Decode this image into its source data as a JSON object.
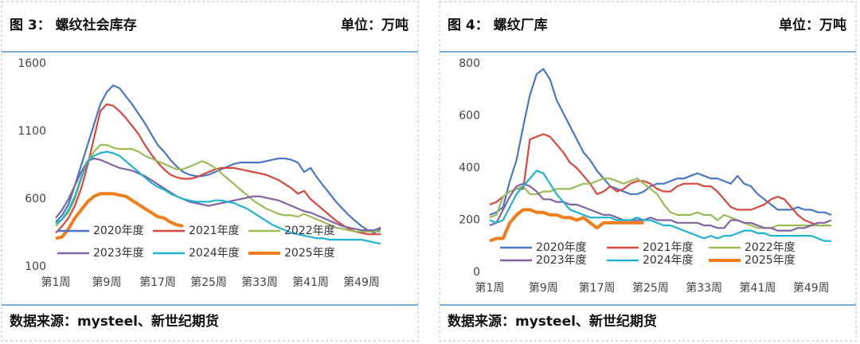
{
  "chart_data": [
    {
      "type": "line",
      "title": "图 3：   螺纹社会库存",
      "unit": "单位：万吨",
      "source": "数据来源：mysteel、新世纪期货",
      "categories": [
        "第1周",
        null,
        null,
        null,
        null,
        null,
        null,
        null,
        "第9周",
        null,
        null,
        null,
        null,
        null,
        null,
        null,
        "第17周",
        null,
        null,
        null,
        null,
        null,
        null,
        null,
        "第25周",
        null,
        null,
        null,
        null,
        null,
        null,
        null,
        "第33周",
        null,
        null,
        null,
        null,
        null,
        null,
        null,
        "第41周",
        null,
        null,
        null,
        null,
        null,
        null,
        null,
        "第49周",
        null,
        null,
        null
      ],
      "ylim": [
        100,
        1600
      ],
      "yticks": [
        100,
        600,
        1100,
        1600
      ],
      "grid": false,
      "series": [
        {
          "name": "2020年度",
          "color": "#4a76c4",
          "values": [
            430,
            480,
            560,
            700,
            850,
            1000,
            1150,
            1300,
            1390,
            1440,
            1420,
            1360,
            1300,
            1230,
            1160,
            1080,
            1000,
            950,
            890,
            840,
            800,
            780,
            770,
            770,
            780,
            800,
            820,
            840,
            860,
            870,
            870,
            870,
            870,
            880,
            890,
            900,
            900,
            890,
            870,
            800,
            830,
            760,
            700,
            640,
            580,
            530,
            480,
            440,
            400,
            370,
            350,
            380
          ]
        },
        {
          "name": "2021年度",
          "color": "#d9473f",
          "values": [
            350,
            400,
            460,
            550,
            680,
            850,
            1050,
            1250,
            1300,
            1290,
            1250,
            1200,
            1140,
            1080,
            1000,
            930,
            870,
            820,
            780,
            760,
            750,
            750,
            760,
            780,
            800,
            820,
            830,
            830,
            830,
            820,
            810,
            800,
            790,
            780,
            760,
            740,
            710,
            680,
            640,
            660,
            600,
            560,
            520,
            480,
            440,
            410,
            380,
            360,
            350,
            340,
            340,
            340
          ]
        },
        {
          "name": "2022年度",
          "color": "#9bbb59",
          "values": [
            400,
            450,
            500,
            600,
            750,
            880,
            950,
            1000,
            1000,
            980,
            970,
            970,
            970,
            950,
            920,
            900,
            880,
            860,
            840,
            820,
            820,
            840,
            860,
            880,
            860,
            830,
            790,
            750,
            710,
            670,
            630,
            590,
            560,
            530,
            510,
            490,
            480,
            480,
            470,
            490,
            470,
            450,
            430,
            410,
            390,
            380,
            370,
            360,
            360,
            360,
            360,
            360
          ]
        },
        {
          "name": "2023年度",
          "color": "#8064a2",
          "values": [
            460,
            520,
            600,
            700,
            800,
            880,
            900,
            890,
            870,
            850,
            830,
            820,
            810,
            790,
            770,
            740,
            710,
            680,
            650,
            620,
            600,
            580,
            570,
            560,
            550,
            560,
            570,
            580,
            590,
            600,
            610,
            620,
            620,
            610,
            600,
            590,
            570,
            550,
            530,
            510,
            500,
            480,
            460,
            440,
            420,
            400,
            390,
            380,
            370,
            370,
            370,
            390
          ]
        },
        {
          "name": "2024年度",
          "color": "#1fb3d2",
          "values": [
            420,
            450,
            520,
            620,
            760,
            880,
            920,
            940,
            950,
            940,
            920,
            880,
            840,
            800,
            760,
            720,
            690,
            670,
            640,
            620,
            600,
            590,
            580,
            580,
            580,
            590,
            590,
            580,
            570,
            550,
            530,
            500,
            470,
            440,
            410,
            390,
            370,
            350,
            340,
            330,
            320,
            310,
            310,
            300,
            300,
            300,
            300,
            300,
            300,
            290,
            280,
            270
          ]
        },
        {
          "name": "2025年度",
          "color": "#f07c1a",
          "width": 4,
          "values": [
            310,
            320,
            380,
            460,
            520,
            580,
            620,
            640,
            640,
            640,
            630,
            620,
            590,
            560,
            530,
            500,
            470,
            460,
            430,
            410,
            400,
            null,
            null,
            null,
            null,
            null,
            null,
            null,
            null,
            null,
            null,
            null,
            null,
            null,
            null,
            null,
            null,
            null,
            null,
            null,
            null,
            null,
            null,
            null,
            null,
            null,
            null,
            null,
            null,
            null,
            null,
            null
          ]
        }
      ]
    },
    {
      "type": "line",
      "title": "图 4：   螺纹厂库",
      "unit": "单位：万吨",
      "source": "数据来源：mysteel、新世纪期货",
      "categories": [
        "第1周",
        null,
        null,
        null,
        null,
        null,
        null,
        null,
        "第9周",
        null,
        null,
        null,
        null,
        null,
        null,
        null,
        "第17周",
        null,
        null,
        null,
        null,
        null,
        null,
        null,
        "第25周",
        null,
        null,
        null,
        null,
        null,
        null,
        null,
        "第33周",
        null,
        null,
        null,
        null,
        null,
        null,
        null,
        "第41周",
        null,
        null,
        null,
        null,
        null,
        null,
        null,
        "第49周",
        null,
        null,
        null
      ],
      "ylim": [
        0,
        800
      ],
      "yticks": [
        0,
        200,
        400,
        600,
        800
      ],
      "grid": false,
      "series": [
        {
          "name": "2020年度",
          "color": "#4a76c4",
          "values": [
            220,
            230,
            250,
            350,
            430,
            560,
            680,
            760,
            780,
            740,
            660,
            610,
            560,
            510,
            460,
            430,
            390,
            360,
            330,
            320,
            310,
            300,
            300,
            310,
            330,
            340,
            340,
            350,
            360,
            360,
            370,
            380,
            370,
            360,
            360,
            350,
            340,
            370,
            340,
            330,
            300,
            280,
            260,
            240,
            240,
            240,
            250,
            240,
            240,
            230,
            230,
            220
          ]
        },
        {
          "name": "2021年度",
          "color": "#d9473f",
          "values": [
            260,
            270,
            290,
            310,
            320,
            320,
            510,
            520,
            530,
            520,
            490,
            460,
            420,
            400,
            370,
            340,
            300,
            310,
            330,
            310,
            320,
            340,
            350,
            350,
            340,
            320,
            310,
            310,
            330,
            340,
            340,
            340,
            330,
            330,
            310,
            280,
            250,
            240,
            240,
            240,
            250,
            260,
            280,
            290,
            280,
            250,
            220,
            200,
            190,
            180,
            180,
            180
          ]
        },
        {
          "name": "2022年度",
          "color": "#9bbb59",
          "values": [
            210,
            220,
            290,
            310,
            320,
            330,
            300,
            300,
            310,
            310,
            320,
            320,
            320,
            330,
            340,
            340,
            350,
            360,
            360,
            350,
            340,
            350,
            360,
            340,
            320,
            300,
            260,
            230,
            220,
            220,
            220,
            230,
            220,
            220,
            200,
            220,
            210,
            200,
            190,
            180,
            170,
            170,
            170,
            180,
            180,
            180,
            180,
            180,
            180,
            180,
            180,
            180
          ]
        },
        {
          "name": "2023年度",
          "color": "#8064a2",
          "values": [
            180,
            190,
            240,
            290,
            330,
            340,
            330,
            310,
            280,
            280,
            270,
            270,
            260,
            260,
            250,
            240,
            230,
            220,
            220,
            210,
            200,
            200,
            200,
            200,
            210,
            200,
            200,
            200,
            190,
            190,
            190,
            190,
            180,
            180,
            170,
            170,
            200,
            200,
            190,
            190,
            180,
            170,
            170,
            160,
            160,
            160,
            170,
            170,
            180,
            190,
            190,
            200
          ]
        },
        {
          "name": "2024年度",
          "color": "#1fb3d2",
          "values": [
            200,
            190,
            200,
            250,
            300,
            330,
            360,
            390,
            380,
            340,
            300,
            270,
            240,
            230,
            220,
            210,
            210,
            210,
            210,
            200,
            200,
            200,
            210,
            200,
            200,
            190,
            180,
            180,
            170,
            160,
            150,
            140,
            130,
            140,
            130,
            140,
            140,
            150,
            160,
            160,
            150,
            150,
            140,
            140,
            140,
            140,
            140,
            140,
            140,
            130,
            120,
            120
          ]
        },
        {
          "name": "2025年度",
          "color": "#f07c1a",
          "width": 4,
          "values": [
            120,
            130,
            130,
            190,
            220,
            240,
            240,
            230,
            230,
            220,
            220,
            210,
            210,
            200,
            210,
            190,
            170,
            190,
            190,
            190,
            190,
            190,
            190,
            190,
            null,
            null,
            null,
            null,
            null,
            null,
            null,
            null,
            null,
            null,
            null,
            null,
            null,
            null,
            null,
            null,
            null,
            null,
            null,
            null,
            null,
            null,
            null,
            null,
            null,
            null,
            null,
            null
          ]
        }
      ]
    }
  ]
}
